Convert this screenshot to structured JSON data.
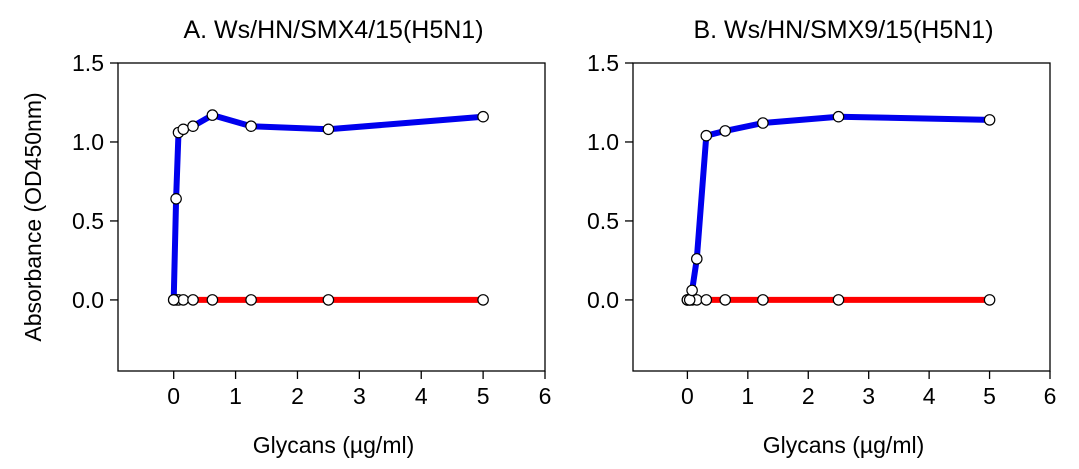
{
  "figure": {
    "ylabel": "Absorbance (OD450nm)"
  },
  "chart_data": [
    {
      "type": "line",
      "title": "A.  Ws/HN/SMX4/15(H5N1)",
      "xlabel": "Glycans (µg/ml)",
      "ylabel": "Absorbance (OD450nm)",
      "xlim": [
        -0.9,
        6
      ],
      "ylim": [
        -0.45,
        1.5
      ],
      "xticks": [
        0,
        1,
        2,
        3,
        4,
        5,
        6
      ],
      "yticks": [
        0.0,
        0.5,
        1.0,
        1.5
      ],
      "xtick_labels": [
        "0",
        "1",
        "2",
        "3",
        "4",
        "5",
        "6"
      ],
      "ytick_labels": [
        "0.0",
        "0.5",
        "1.0",
        "1.5"
      ],
      "grid": false,
      "series": [
        {
          "color": "#0000ee",
          "x": [
            0,
            0.039,
            0.078,
            0.156,
            0.3125,
            0.625,
            1.25,
            2.5,
            5
          ],
          "y": [
            0.0,
            0.64,
            1.06,
            1.08,
            1.1,
            1.17,
            1.1,
            1.08,
            1.16
          ]
        },
        {
          "color": "#ff0000",
          "x": [
            0,
            0.039,
            0.078,
            0.156,
            0.3125,
            0.625,
            1.25,
            2.5,
            5
          ],
          "y": [
            0,
            0,
            0,
            0,
            0,
            0,
            0,
            0,
            0
          ]
        }
      ]
    },
    {
      "type": "line",
      "title": "B.  Ws/HN/SMX9/15(H5N1)",
      "xlabel": "Glycans (µg/ml)",
      "ylabel": "Absorbance (OD450nm)",
      "xlim": [
        -0.9,
        6
      ],
      "ylim": [
        -0.45,
        1.5
      ],
      "xticks": [
        0,
        1,
        2,
        3,
        4,
        5,
        6
      ],
      "yticks": [
        0.0,
        0.5,
        1.0,
        1.5
      ],
      "xtick_labels": [
        "0",
        "1",
        "2",
        "3",
        "4",
        "5",
        "6"
      ],
      "ytick_labels": [
        "0.0",
        "0.5",
        "1.0",
        "1.5"
      ],
      "grid": false,
      "series": [
        {
          "color": "#0000ee",
          "x": [
            0,
            0.039,
            0.078,
            0.156,
            0.3125,
            0.625,
            1.25,
            2.5,
            5
          ],
          "y": [
            0.0,
            0.0,
            0.06,
            0.26,
            1.04,
            1.07,
            1.12,
            1.16,
            1.14
          ]
        },
        {
          "color": "#ff0000",
          "x": [
            0,
            0.039,
            0.078,
            0.156,
            0.3125,
            0.625,
            1.25,
            2.5,
            5
          ],
          "y": [
            0,
            0,
            0,
            0,
            0,
            0,
            0,
            0,
            0
          ]
        }
      ]
    }
  ]
}
